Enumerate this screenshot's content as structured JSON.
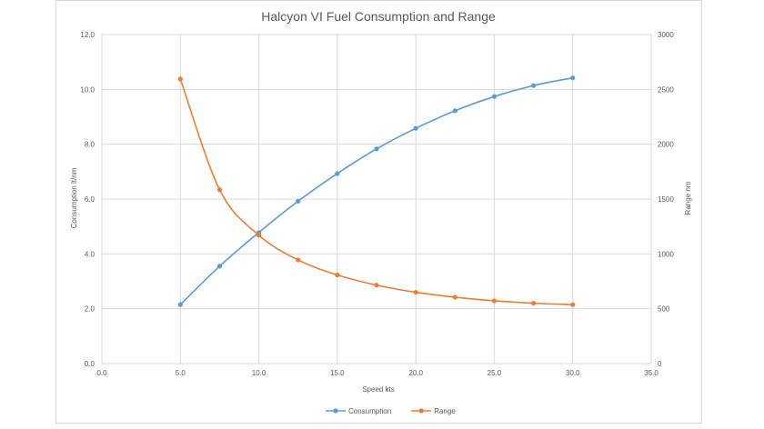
{
  "chart_data": {
    "type": "line",
    "title": "Halcyon VI Fuel Consumption and Range",
    "xlabel": "Speed kts",
    "ylabel": "Consumption lt/nm",
    "y2label": "Range nm",
    "xlim": [
      0,
      35
    ],
    "ylim": [
      0,
      12
    ],
    "y2lim": [
      0,
      3000
    ],
    "x_ticks": [
      "0.0",
      "5.0",
      "10.0",
      "15.0",
      "20.0",
      "25.0",
      "30.0",
      "35.0"
    ],
    "y_ticks": [
      "0.0",
      "2.0",
      "4.0",
      "6.0",
      "8.0",
      "10.0",
      "12.0"
    ],
    "y2_ticks": [
      "0",
      "500",
      "1000",
      "1500",
      "2000",
      "2500",
      "3000"
    ],
    "grid": true,
    "legend_position": "bottom",
    "series": [
      {
        "name": "Consumption",
        "axis": "left",
        "color": "#5B9BD5",
        "x": [
          5,
          7.5,
          10,
          12.5,
          15,
          17.5,
          20,
          22.5,
          25,
          27.5,
          30
        ],
        "values": [
          2.15,
          3.55,
          4.78,
          5.92,
          6.93,
          7.83,
          8.58,
          9.22,
          9.74,
          10.14,
          10.42
        ]
      },
      {
        "name": "Range",
        "axis": "right",
        "color": "#ED7D31",
        "x": [
          5,
          7.5,
          10,
          12.5,
          15,
          17.5,
          20,
          22.5,
          25,
          27.5,
          30
        ],
        "values": [
          2595,
          1585,
          1170,
          945,
          808,
          715,
          650,
          605,
          572,
          550,
          537
        ]
      }
    ]
  }
}
